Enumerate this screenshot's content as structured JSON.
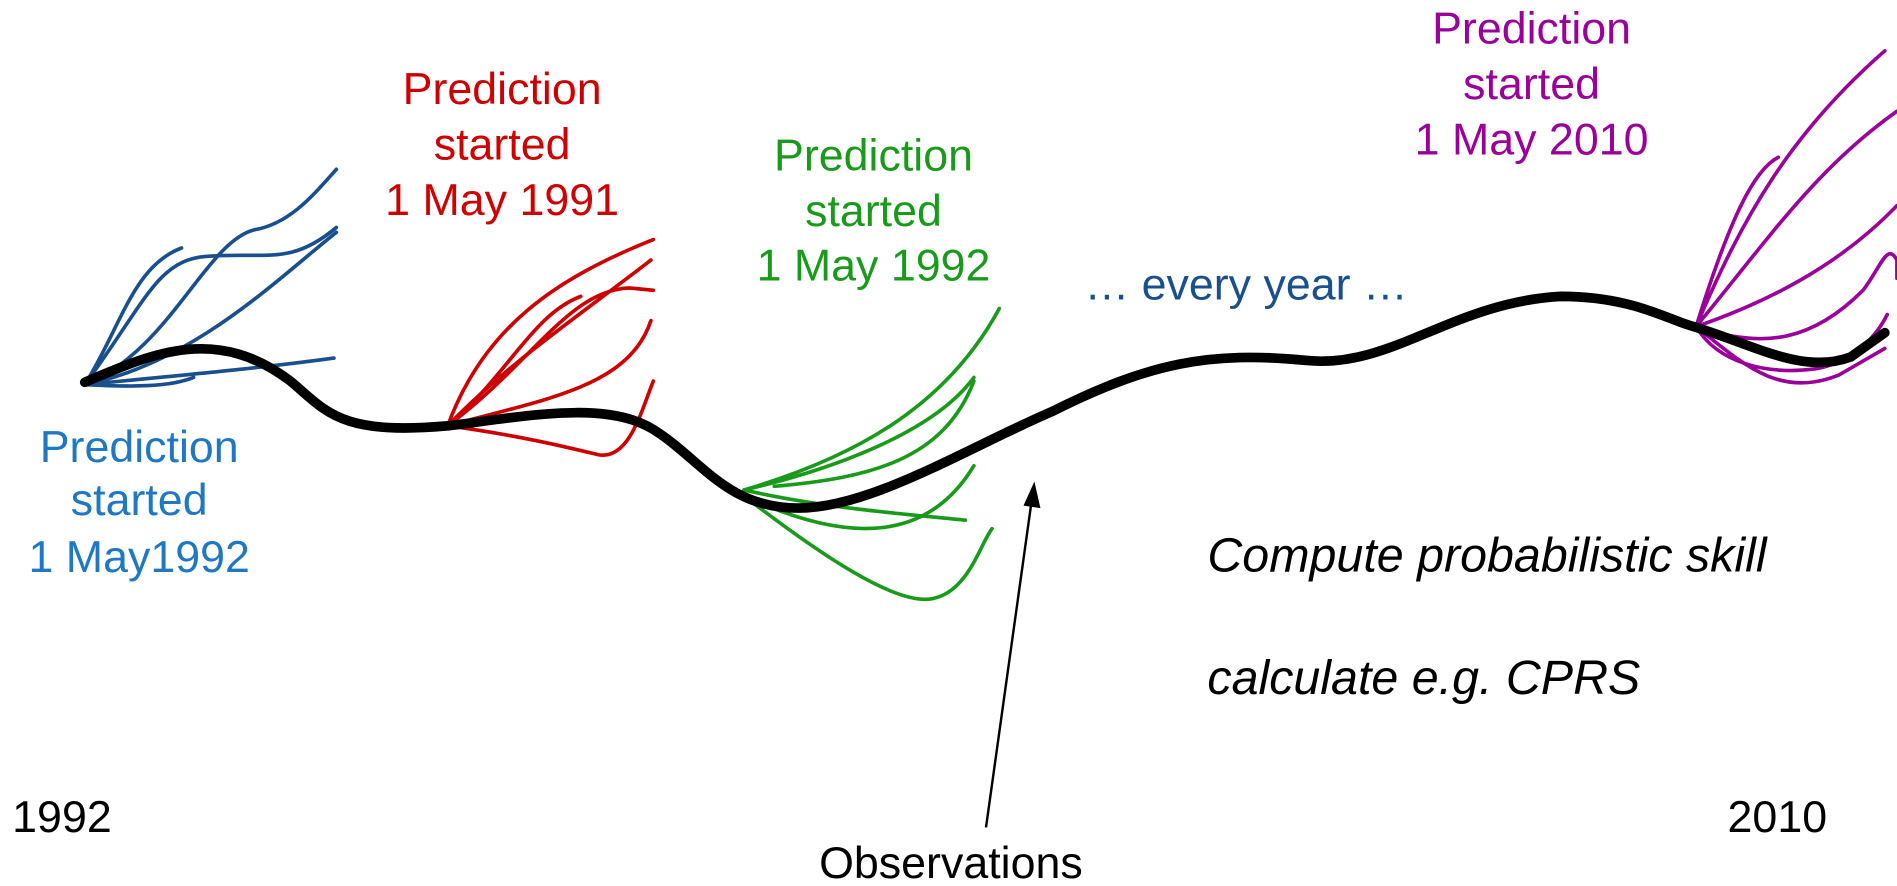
{
  "labels": {
    "blue": [
      "Prediction",
      "started",
      "1 May1992"
    ],
    "red": [
      "Prediction",
      "started",
      "1 May 1991"
    ],
    "green": [
      "Prediction",
      "started",
      "1 May 1992"
    ],
    "purple": [
      "Prediction",
      "started",
      "1 May 2010"
    ]
  },
  "every_year": "… every year …",
  "skill": [
    "Compute probabilistic skill",
    "calculate e.g. CPRS"
  ],
  "year_start": "1992",
  "year_end": "2010",
  "observations": "Observations"
}
